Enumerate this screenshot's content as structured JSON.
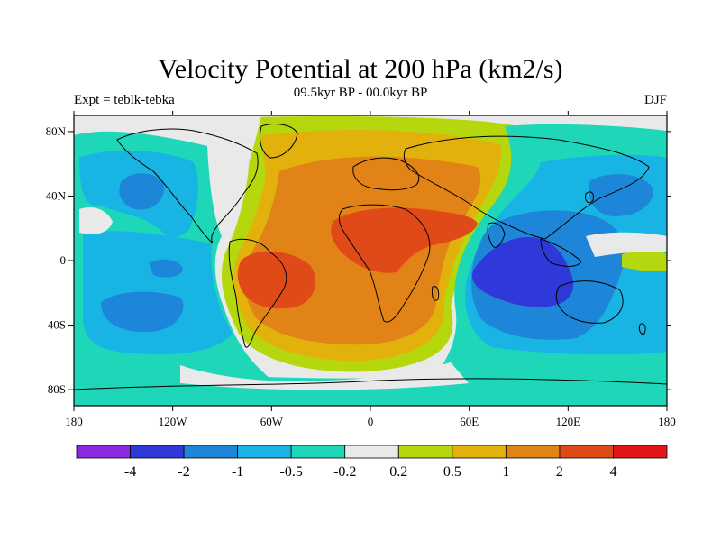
{
  "title": "Velocity Potential at 200 hPa (km2/s)",
  "subtitle_left": "Expt = teblk-tebka",
  "subtitle_center": "09.5kyr BP - 00.0kyr BP",
  "subtitle_right": "DJF",
  "colors": {
    "c1": "#8a2be2",
    "c2": "#2f38d8",
    "c3": "#1e86d8",
    "c4": "#18b4e4",
    "c5": "#1ed7b8",
    "c6": "#e9e9e9",
    "c7": "#b4d70d",
    "c8": "#e2b10c",
    "c9": "#e28317",
    "c10": "#e04a18",
    "c11": "#e21616",
    "land_outline": "#000000",
    "frame": "#000000"
  },
  "chart_data": {
    "type": "heatmap",
    "projection": "cylindrical-equidistant",
    "variable": "Velocity Potential at 200 hPa",
    "units": "km2/s",
    "xlim": [
      -180,
      180
    ],
    "ylim": [
      -90,
      90
    ],
    "x_tick_labels": [
      "180",
      "120W",
      "60W",
      "0",
      "60E",
      "120E",
      "180"
    ],
    "y_tick_labels": [
      "80N",
      "40N",
      "0",
      "40S",
      "80S"
    ],
    "colorbar": {
      "levels": [
        -4,
        -2,
        -1,
        -0.5,
        -0.2,
        0.2,
        0.5,
        1,
        2,
        4
      ],
      "level_labels": [
        "-4",
        "-2",
        "-1",
        "-0.5",
        "-0.2",
        "0.2",
        "0.5",
        "1",
        "2",
        "4"
      ],
      "colors": [
        "#8a2be2",
        "#2f38d8",
        "#1e86d8",
        "#18b4e4",
        "#1ed7b8",
        "#e9e9e9",
        "#b4d70d",
        "#e2b10c",
        "#e28317",
        "#e04a18",
        "#e21616"
      ]
    }
  }
}
